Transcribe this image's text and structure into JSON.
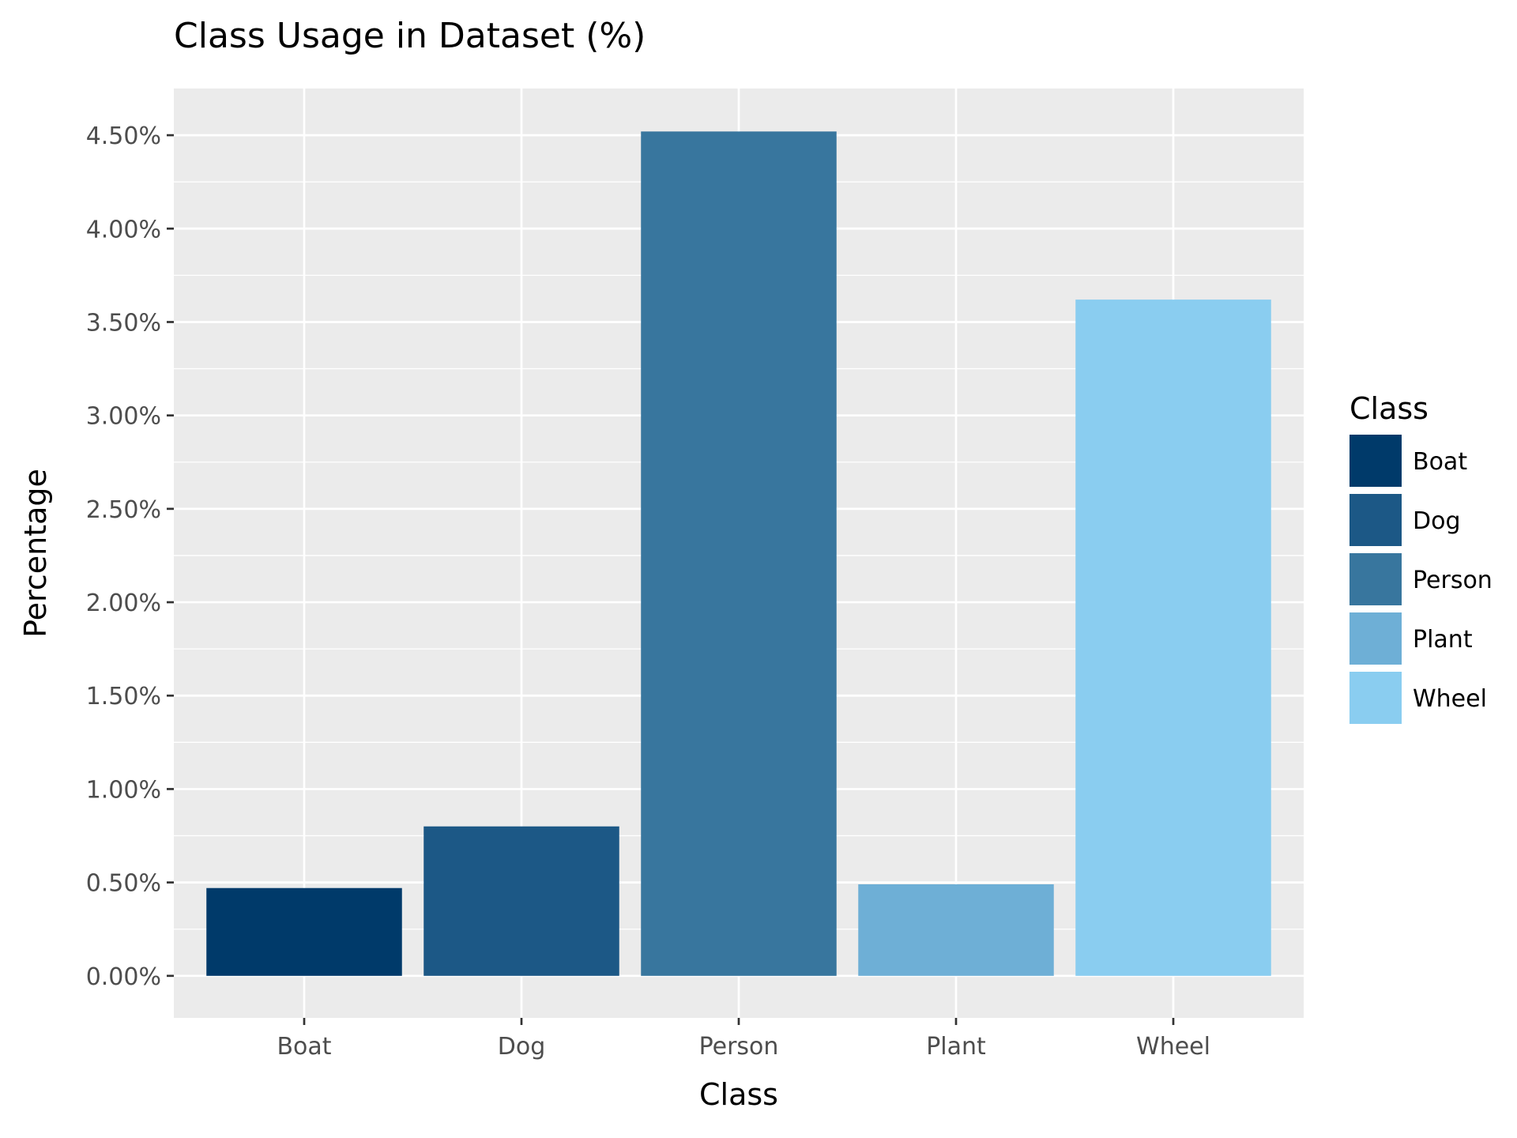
{
  "chart_data": {
    "type": "bar",
    "title": "Class Usage in Dataset (%)",
    "xlabel": "Class",
    "ylabel": "Percentage",
    "categories": [
      "Boat",
      "Dog",
      "Person",
      "Plant",
      "Wheel"
    ],
    "values": [
      0.47,
      0.8,
      4.52,
      0.49,
      3.62
    ],
    "colors": [
      "#003a6a",
      "#1c5886",
      "#38769e",
      "#6eafd6",
      "#8acdf0"
    ],
    "ylim": [
      -0.225,
      4.75
    ],
    "yticks": [
      0.0,
      0.5,
      1.0,
      1.5,
      2.0,
      2.5,
      3.0,
      3.5,
      4.0,
      4.5
    ],
    "ytick_labels": [
      "0.00%",
      "0.50%",
      "1.00%",
      "1.50%",
      "2.00%",
      "2.50%",
      "3.00%",
      "3.50%",
      "4.00%",
      "4.50%"
    ],
    "grid": true,
    "legend": {
      "title": "Class",
      "position": "right",
      "entries": [
        "Boat",
        "Dog",
        "Person",
        "Plant",
        "Wheel"
      ]
    }
  }
}
